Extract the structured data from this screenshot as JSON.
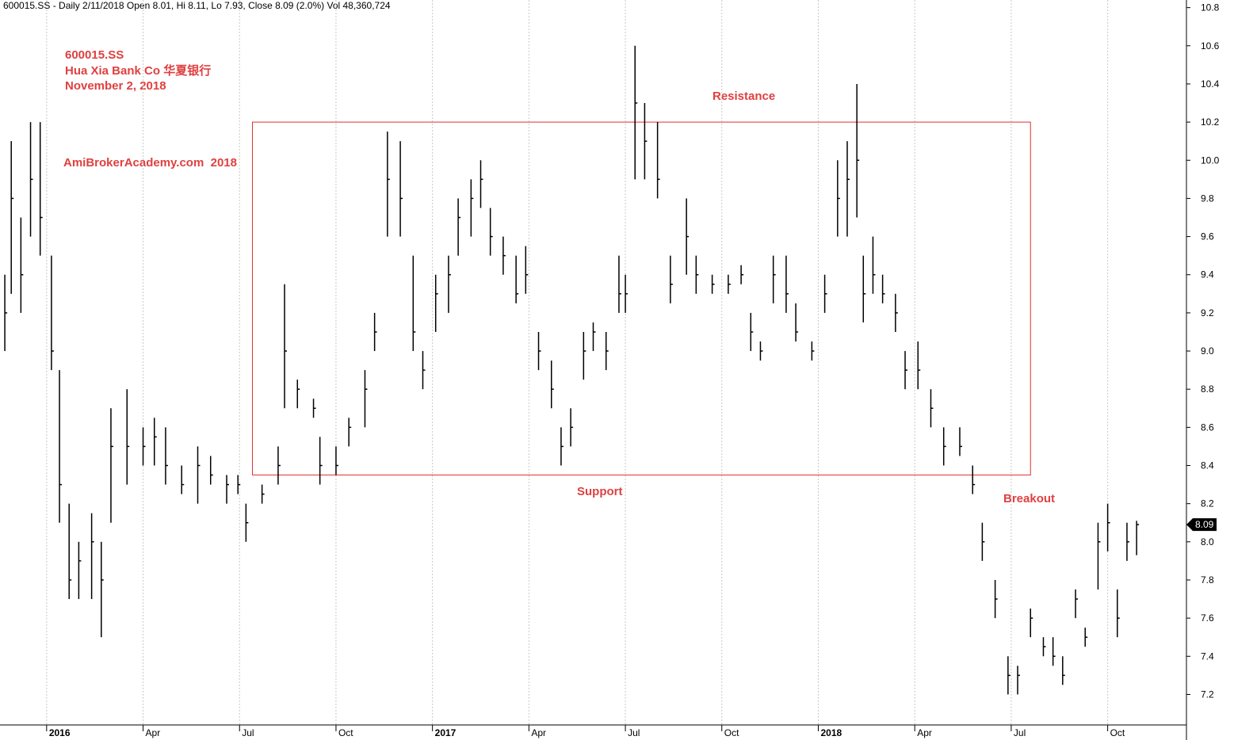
{
  "chart_data": {
    "type": "ohlc",
    "header": "600015.SS - Daily 2/11/2018 Open 8.01, Hi 8.11, Lo 7.93, Close 8.09 (2.0%) Vol 48,360,724",
    "annotations": {
      "symbol": "600015.SS",
      "company": "Hua Xia Bank Co 华夏银行",
      "date": "November 2, 2018",
      "source": "AmiBrokerAcademy.com  2018",
      "resistance": "Resistance",
      "support": "Support",
      "breakout": "Breakout"
    },
    "range_box": {
      "x": [
        6.4,
        30.6
      ],
      "y": [
        8.35,
        10.2
      ]
    },
    "last_price": 8.09,
    "color": "#000000",
    "box_color": "#e03030",
    "xlim": [
      -1.45,
      35.45
    ],
    "ylim": [
      7.04,
      10.84
    ],
    "xticks": [
      {
        "value": 0,
        "label": "2016"
      },
      {
        "value": 3,
        "label": "Apr"
      },
      {
        "value": 6,
        "label": "Jul"
      },
      {
        "value": 9,
        "label": "Oct"
      },
      {
        "value": 12,
        "label": "2017"
      },
      {
        "value": 15,
        "label": "Apr"
      },
      {
        "value": 18,
        "label": "Jul"
      },
      {
        "value": 21,
        "label": "Oct"
      },
      {
        "value": 24,
        "label": "2018"
      },
      {
        "value": 27,
        "label": "Apr"
      },
      {
        "value": 30,
        "label": "Jul"
      },
      {
        "value": 33,
        "label": "Oct"
      }
    ],
    "yticks": [
      7.2,
      7.4,
      7.6,
      7.8,
      {
        "value": 8,
        "label": "8.0"
      },
      8.2,
      8.4,
      8.6,
      8.8,
      {
        "value": 9,
        "label": "9.0"
      },
      9.2,
      9.4,
      9.6,
      9.8,
      {
        "value": 10,
        "label": "10.0"
      },
      10.2,
      10.4,
      10.6,
      10.8
    ],
    "grid": true,
    "x": [
      -1.3,
      -1.1,
      -0.8,
      -0.5,
      -0.2,
      0.15,
      0.4,
      0.7,
      1.0,
      1.4,
      1.7,
      2.0,
      2.5,
      3.0,
      3.35,
      3.7,
      4.2,
      4.7,
      5.1,
      5.6,
      5.95,
      6.2,
      6.7,
      7.2,
      7.4,
      7.8,
      8.3,
      8.5,
      9.0,
      9.4,
      9.9,
      10.2,
      10.6,
      11.0,
      11.4,
      11.7,
      12.1,
      12.5,
      12.8,
      13.2,
      13.5,
      13.8,
      14.2,
      14.6,
      14.9,
      15.3,
      15.7,
      16.0,
      16.3,
      16.7,
      17.0,
      17.4,
      17.8,
      18.0,
      18.3,
      18.6,
      19.0,
      19.4,
      19.9,
      20.2,
      20.7,
      21.2,
      21.6,
      21.9,
      22.2,
      22.6,
      23.0,
      23.3,
      23.8,
      24.2,
      24.6,
      24.9,
      25.2,
      25.4,
      25.7,
      26.0,
      26.4,
      26.7,
      27.1,
      27.5,
      27.9,
      28.4,
      28.8,
      29.1,
      29.5,
      29.9,
      30.2,
      30.6,
      31.0,
      31.3,
      31.6,
      32.0,
      32.3,
      32.7,
      33.0,
      33.3,
      33.6,
      33.9
    ],
    "high": [
      9.4,
      10.1,
      9.7,
      10.2,
      10.2,
      9.5,
      8.9,
      8.2,
      8.0,
      8.15,
      8.0,
      8.7,
      8.8,
      8.6,
      8.65,
      8.6,
      8.4,
      8.5,
      8.45,
      8.35,
      8.35,
      8.2,
      8.3,
      8.5,
      9.35,
      8.85,
      8.75,
      8.55,
      8.5,
      8.65,
      8.9,
      9.2,
      10.15,
      10.1,
      9.5,
      9.0,
      9.4,
      9.5,
      9.8,
      9.9,
      10.0,
      9.75,
      9.6,
      9.5,
      9.55,
      9.1,
      8.95,
      8.6,
      8.7,
      9.1,
      9.15,
      9.1,
      9.5,
      9.4,
      10.6,
      10.3,
      10.2,
      9.5,
      9.8,
      9.5,
      9.4,
      9.4,
      9.45,
      9.2,
      9.05,
      9.5,
      9.5,
      9.25,
      9.05,
      9.4,
      10.0,
      10.1,
      10.4,
      9.5,
      9.6,
      9.4,
      9.3,
      9.0,
      9.05,
      8.8,
      8.6,
      8.6,
      8.4,
      8.1,
      7.8,
      7.4,
      7.35,
      7.65,
      7.5,
      7.5,
      7.4,
      7.75,
      7.55,
      8.1,
      8.2,
      7.75,
      8.1,
      8.11
    ],
    "low": [
      9.0,
      9.3,
      9.2,
      9.6,
      9.5,
      8.9,
      8.1,
      7.7,
      7.7,
      7.7,
      7.5,
      8.1,
      8.3,
      8.4,
      8.4,
      8.3,
      8.25,
      8.2,
      8.3,
      8.2,
      8.25,
      8.0,
      8.2,
      8.3,
      8.7,
      8.7,
      8.65,
      8.3,
      8.35,
      8.5,
      8.6,
      9.0,
      9.6,
      9.6,
      9.0,
      8.8,
      9.1,
      9.2,
      9.5,
      9.6,
      9.75,
      9.5,
      9.4,
      9.25,
      9.3,
      8.9,
      8.7,
      8.4,
      8.5,
      8.85,
      9.0,
      8.9,
      9.2,
      9.2,
      9.9,
      9.9,
      9.8,
      9.25,
      9.4,
      9.3,
      9.3,
      9.3,
      9.35,
      9.0,
      8.95,
      9.25,
      9.2,
      9.05,
      8.95,
      9.2,
      9.6,
      9.6,
      9.7,
      9.15,
      9.3,
      9.25,
      9.1,
      8.8,
      8.8,
      8.6,
      8.4,
      8.45,
      8.25,
      7.9,
      7.6,
      7.2,
      7.2,
      7.5,
      7.4,
      7.35,
      7.25,
      7.6,
      7.45,
      7.75,
      7.95,
      7.5,
      7.9,
      7.93
    ],
    "close": [
      9.2,
      9.8,
      9.4,
      9.9,
      9.7,
      9.0,
      8.3,
      7.8,
      7.9,
      8.0,
      7.8,
      8.5,
      8.5,
      8.5,
      8.55,
      8.4,
      8.3,
      8.4,
      8.35,
      8.3,
      8.3,
      8.1,
      8.25,
      8.4,
      9.0,
      8.8,
      8.7,
      8.4,
      8.4,
      8.6,
      8.8,
      9.1,
      9.9,
      9.8,
      9.1,
      8.9,
      9.3,
      9.4,
      9.7,
      9.8,
      9.9,
      9.6,
      9.5,
      9.3,
      9.4,
      9.0,
      8.8,
      8.5,
      8.6,
      9.0,
      9.1,
      9.0,
      9.3,
      9.3,
      10.3,
      10.1,
      9.9,
      9.35,
      9.6,
      9.4,
      9.35,
      9.35,
      9.4,
      9.1,
      9.0,
      9.4,
      9.3,
      9.1,
      9.0,
      9.3,
      9.8,
      9.9,
      10.0,
      9.3,
      9.4,
      9.3,
      9.2,
      8.9,
      8.9,
      8.7,
      8.5,
      8.5,
      8.3,
      8.0,
      7.7,
      7.3,
      7.3,
      7.6,
      7.45,
      7.4,
      7.3,
      7.7,
      7.5,
      8.0,
      8.1,
      7.6,
      8.0,
      8.09
    ]
  }
}
